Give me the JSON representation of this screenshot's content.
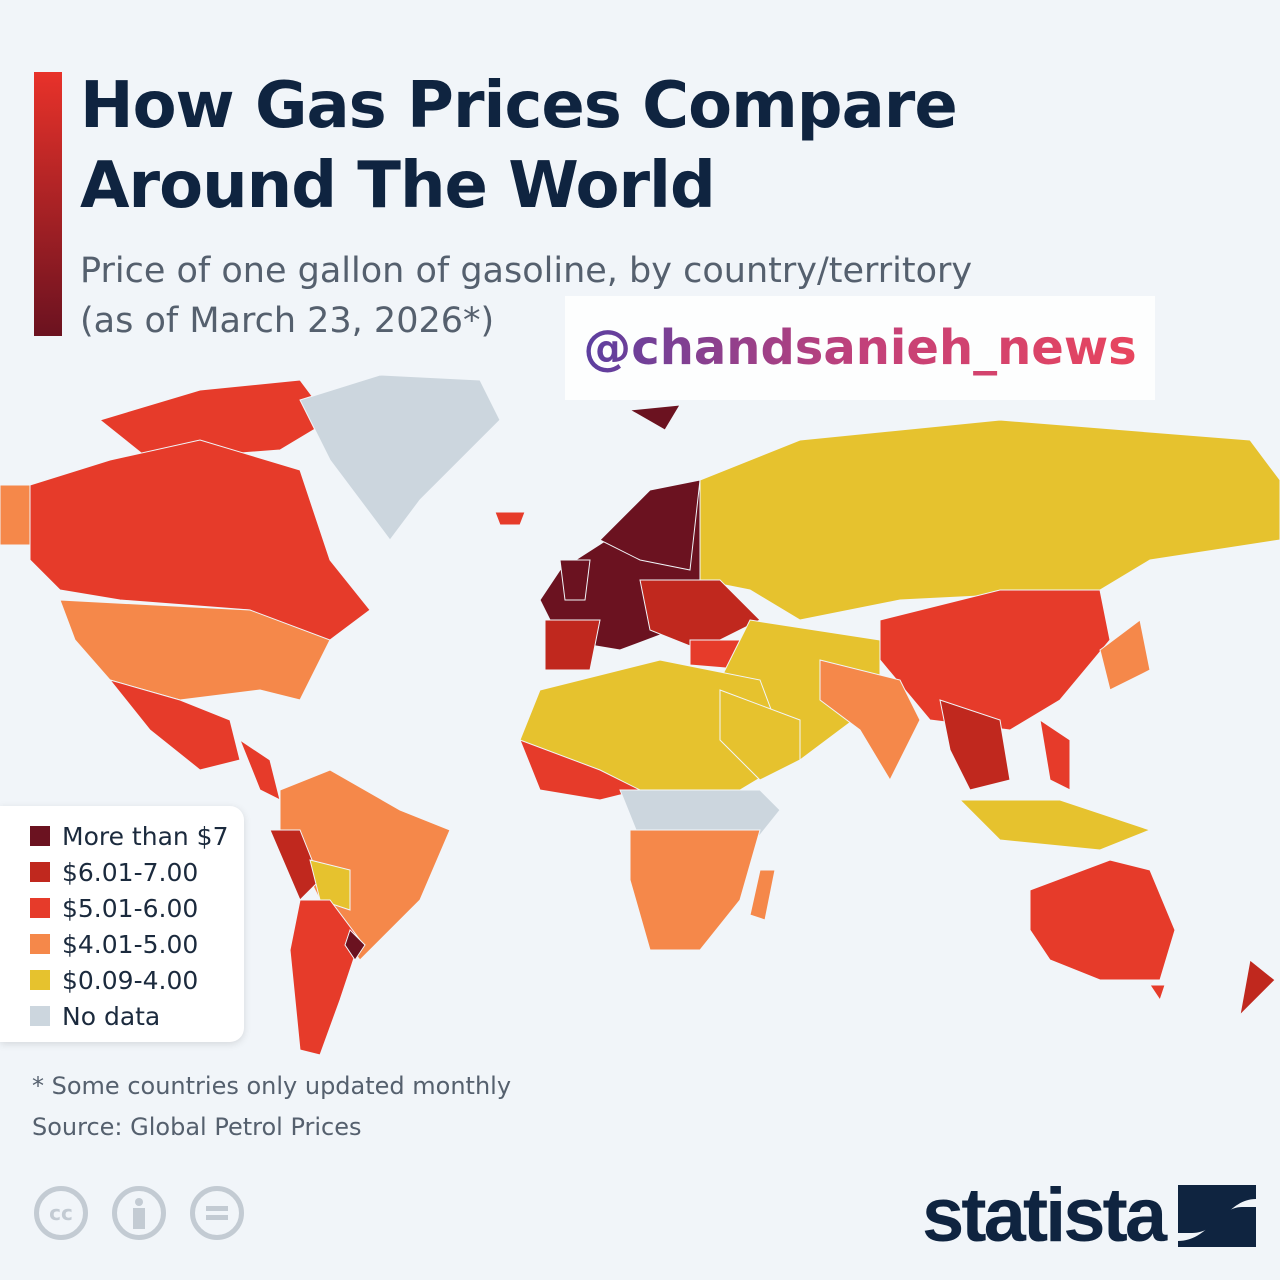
{
  "header": {
    "title_line1": "How Gas Prices Compare",
    "title_line2": "Around The World",
    "subtitle_line1": "Price of one gallon of gasoline, by country/territory",
    "subtitle_line2": "(as of March 23, 2026*)"
  },
  "watermark": "@chandsanieh_news",
  "legend": [
    {
      "label": "More than $7",
      "color": "#6b1220"
    },
    {
      "label": "$6.01-7.00",
      "color": "#c0281e"
    },
    {
      "label": "$5.01-6.00",
      "color": "#e63b2a"
    },
    {
      "label": "$4.01-5.00",
      "color": "#f5884a"
    },
    {
      "label": "$0.09-4.00",
      "color": "#e6c22e"
    },
    {
      "label": "No data",
      "color": "#ccd6de"
    }
  ],
  "footnote": "* Some countries only updated monthly",
  "source": "Source: Global Petrol Prices",
  "license_icons": [
    "cc-icon",
    "attribution-icon",
    "no-derivatives-icon"
  ],
  "brand": "statista"
}
